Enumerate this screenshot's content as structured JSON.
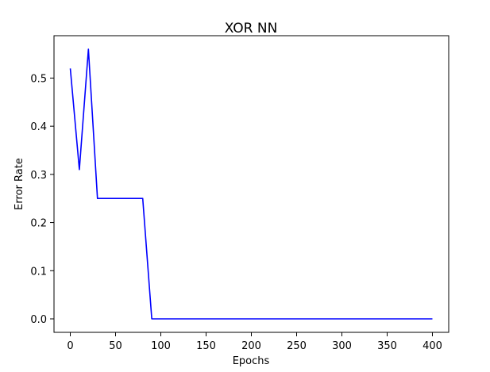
{
  "chart_data": {
    "type": "line",
    "title": "XOR NN",
    "xlabel": "Epochs",
    "ylabel": "Error Rate",
    "xlim": [
      -18,
      418
    ],
    "ylim": [
      -0.028,
      0.588
    ],
    "xticks": [
      0,
      50,
      100,
      150,
      200,
      250,
      300,
      350,
      400
    ],
    "xtick_labels": [
      "0",
      "50",
      "100",
      "150",
      "200",
      "250",
      "300",
      "350",
      "400"
    ],
    "yticks": [
      0.0,
      0.1,
      0.2,
      0.3,
      0.4,
      0.5
    ],
    "ytick_labels": [
      "0.0",
      "0.1",
      "0.2",
      "0.3",
      "0.4",
      "0.5"
    ],
    "grid": false,
    "legend": "none",
    "series": [
      {
        "color": "#0000ff",
        "x": [
          0,
          10,
          20,
          30,
          40,
          50,
          60,
          70,
          80,
          90,
          100,
          150,
          200,
          250,
          300,
          350,
          400
        ],
        "y": [
          0.52,
          0.31,
          0.56,
          0.25,
          0.25,
          0.25,
          0.25,
          0.25,
          0.25,
          0.0,
          0.0,
          0.0,
          0.0,
          0.0,
          0.0,
          0.0,
          0.0
        ]
      }
    ]
  }
}
